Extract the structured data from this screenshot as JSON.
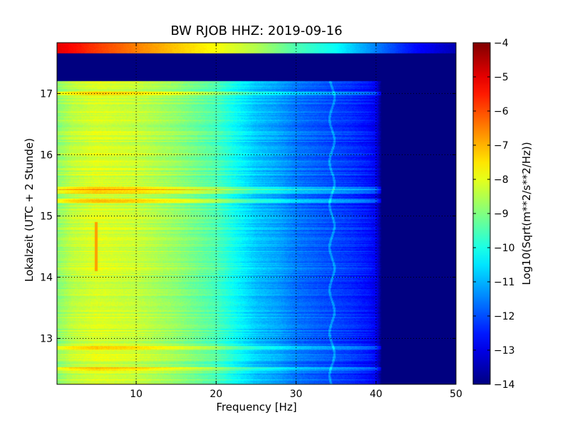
{
  "chart_data": {
    "type": "heatmap",
    "title": "BW RJOB HHZ: 2019-09-16",
    "xlabel": "Frequency [Hz]",
    "ylabel": "Lokalzeit (UTC + 2 Stunde)",
    "xlim": [
      0.1,
      50
    ],
    "ylim": [
      17.83,
      12.25
    ],
    "x_ticks": [
      10,
      20,
      30,
      40,
      50
    ],
    "y_ticks": [
      13,
      14,
      15,
      16,
      17
    ],
    "grid": true,
    "colormap": "jet",
    "colorbar": {
      "label": "Log10(Sqrt(m**2/s**2/Hz))",
      "range": [
        -14,
        -4
      ],
      "ticks": [
        -14,
        -13,
        -12,
        -11,
        -10,
        -9,
        -8,
        -7,
        -6,
        -5,
        -4
      ]
    },
    "baseline_profile": {
      "frequency_hz": [
        0.1,
        2,
        5,
        10,
        15,
        20,
        23,
        25,
        28,
        30,
        33,
        35,
        37,
        39,
        40,
        40.7,
        50
      ],
      "value": [
        -8.9,
        -8.4,
        -8.1,
        -8.3,
        -8.8,
        -9.5,
        -10.3,
        -10.8,
        -11.2,
        -11.6,
        -11.9,
        -12.1,
        -12.3,
        -12.6,
        -12.9,
        -14,
        -14
      ]
    },
    "data_gap": {
      "time_range": [
        17.2,
        17.65
      ],
      "value": -14
    },
    "last_row": {
      "time_range": [
        17.65,
        17.83
      ],
      "frequency_hz": [
        0.1,
        5,
        10,
        15,
        20,
        25,
        30,
        35,
        40,
        44,
        50
      ],
      "value": [
        -5.0,
        -5.8,
        -6.5,
        -7.2,
        -7.8,
        -8.5,
        -9.5,
        -10.2,
        -11.5,
        -12.5,
        -13.5
      ]
    },
    "features": {
      "line_5hz": {
        "frequency_hz": 5,
        "time_range": [
          14.1,
          14.9
        ],
        "value": -6.8
      },
      "drifting_tone_hz": [
        34.2,
        34.8
      ],
      "strong_bands_hours": [
        12.5,
        12.85,
        15.25,
        15.4,
        15.45,
        17.0
      ]
    }
  }
}
